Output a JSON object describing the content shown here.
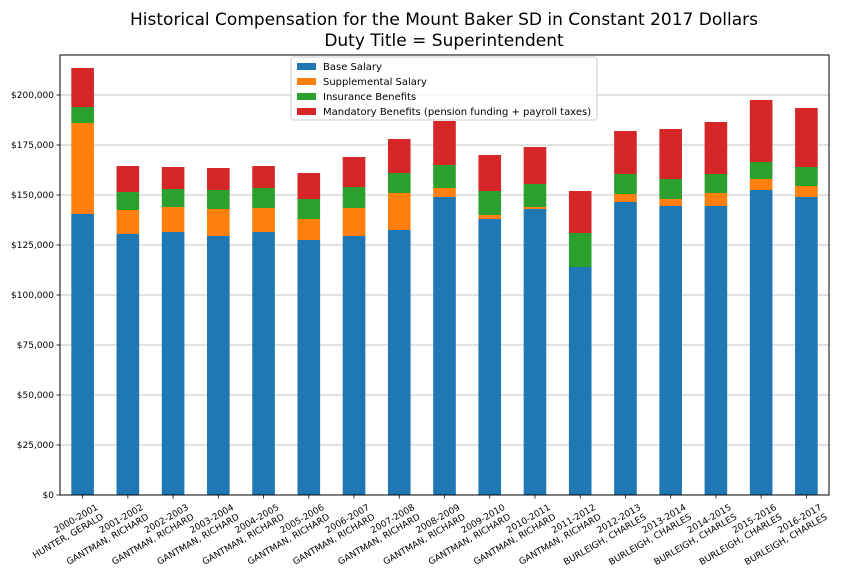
{
  "chart_data": {
    "type": "bar",
    "stacked": true,
    "title": "Historical Compensation for the Mount Baker SD in Constant 2017 Dollars",
    "subtitle": "Duty Title = Superintendent",
    "xlabel": "",
    "ylabel": "",
    "ylim": [
      0,
      220000
    ],
    "yticks": [
      "$0",
      "$25,000",
      "$50,000",
      "$75,000",
      "$100,000",
      "$125,000",
      "$150,000",
      "$175,000",
      "$200,000"
    ],
    "grid": true,
    "legend_position": "top-center",
    "categories": [
      [
        "2000-2001",
        "HUNTER, GERALD"
      ],
      [
        "2001-2002",
        "GANTMAN, RICHARD"
      ],
      [
        "2002-2003",
        "GANTMAN, RICHARD"
      ],
      [
        "2003-2004",
        "GANTMAN, RICHARD"
      ],
      [
        "2004-2005",
        "GANTMAN, RICHARD"
      ],
      [
        "2005-2006",
        "GANTMAN, RICHARD"
      ],
      [
        "2006-2007",
        "GANTMAN, RICHARD"
      ],
      [
        "2007-2008",
        "GANTMAN, RICHARD"
      ],
      [
        "2008-2009",
        "GANTMAN, RICHARD"
      ],
      [
        "2009-2010",
        "GANTMAN, RICHARD"
      ],
      [
        "2010-2011",
        "GANTMAN, RICHARD"
      ],
      [
        "2011-2012",
        "GANTMAN, RICHARD"
      ],
      [
        "2012-2013",
        "BURLEIGH, CHARLES"
      ],
      [
        "2013-2014",
        "BURLEIGH, CHARLES"
      ],
      [
        "2014-2015",
        "BURLEIGH, CHARLES"
      ],
      [
        "2015-2016",
        "BURLEIGH, CHARLES"
      ],
      [
        "2016-2017",
        "BURLEIGH, CHARLES"
      ]
    ],
    "series": [
      {
        "name": "Base Salary",
        "color": "#1f77b4",
        "values": [
          140500,
          130500,
          131500,
          129500,
          131500,
          127500,
          129500,
          132500,
          149000,
          138000,
          143000,
          114000,
          146500,
          144500,
          144500,
          152500,
          149000
        ]
      },
      {
        "name": "Supplemental Salary",
        "color": "#ff7f0e",
        "values": [
          45500,
          12000,
          12500,
          13500,
          12000,
          10500,
          14000,
          18500,
          4500,
          2000,
          1000,
          0,
          4000,
          3500,
          6500,
          5500,
          5500
        ]
      },
      {
        "name": "Insurance Benefits",
        "color": "#2ca02c",
        "values": [
          8000,
          9000,
          9000,
          9500,
          10000,
          10000,
          10500,
          10000,
          11500,
          12000,
          11500,
          17000,
          10000,
          10000,
          9500,
          8500,
          9500
        ]
      },
      {
        "name": "Mandatory Benefits (pension funding + payroll taxes)",
        "color": "#d62728",
        "values": [
          19500,
          13000,
          11000,
          11000,
          11000,
          13000,
          15000,
          17000,
          22000,
          18000,
          18500,
          21000,
          21500,
          25000,
          26000,
          31000,
          29500
        ]
      }
    ]
  }
}
